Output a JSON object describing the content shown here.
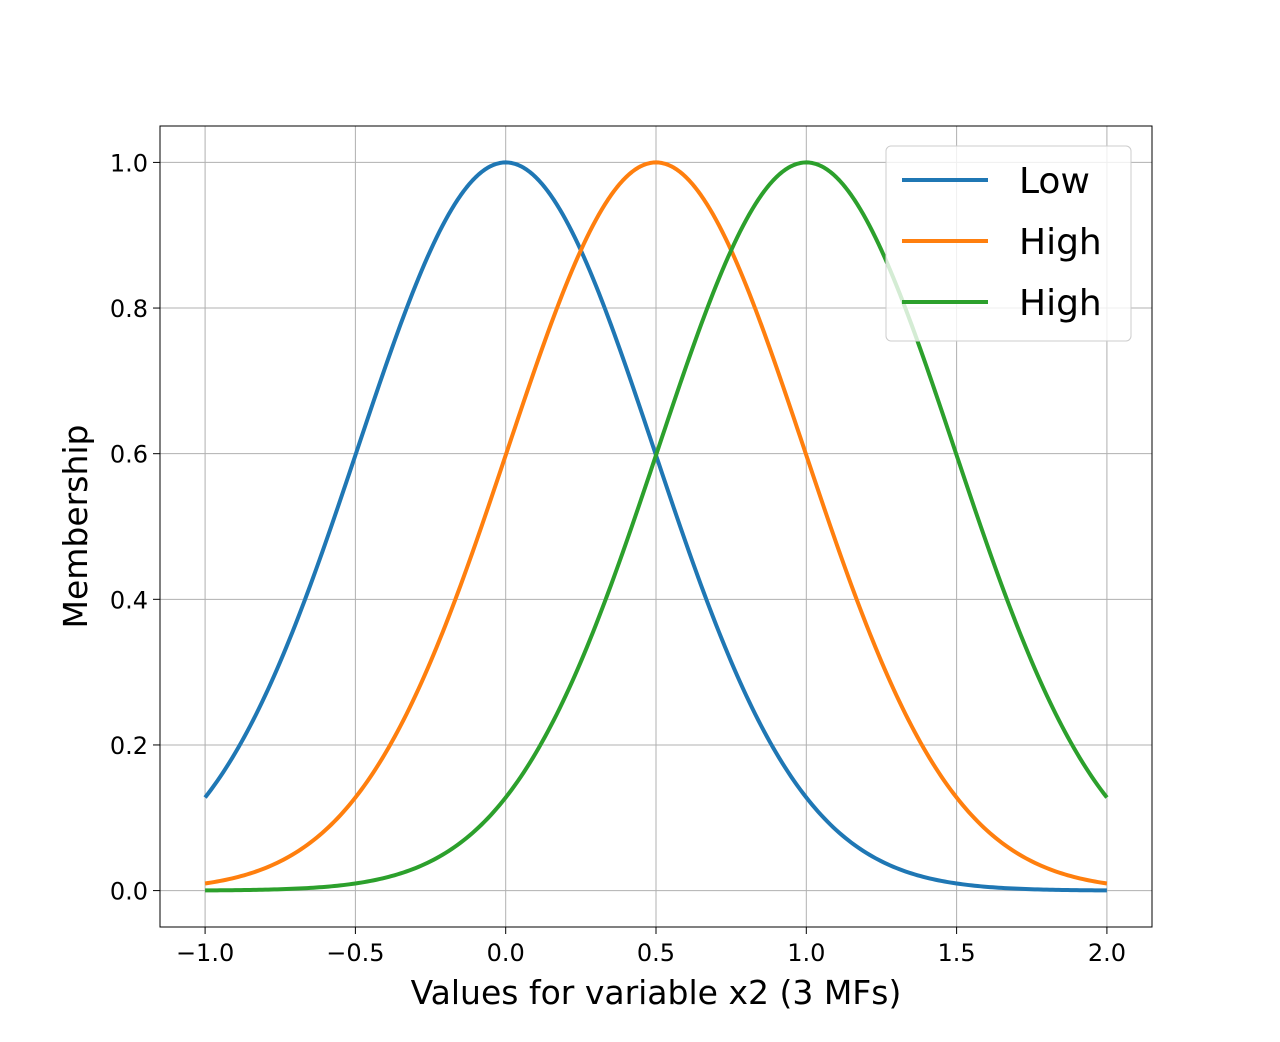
{
  "chart_data": {
    "type": "line",
    "title": "",
    "xlabel": "Values for variable x2 (3 MFs)",
    "ylabel": "Membership",
    "xlim": [
      -1.15,
      2.15
    ],
    "ylim": [
      -0.05,
      1.05
    ],
    "xticks": [
      -1.0,
      -0.5,
      0.0,
      0.5,
      1.0,
      1.5,
      2.0
    ],
    "xtick_labels": [
      "−1.0",
      "−0.5",
      "0.0",
      "0.5",
      "1.0",
      "1.5",
      "2.0"
    ],
    "yticks": [
      0.0,
      0.2,
      0.4,
      0.6,
      0.8,
      1.0
    ],
    "ytick_labels": [
      "0.0",
      "0.2",
      "0.4",
      "0.6",
      "0.8",
      "1.0"
    ],
    "grid": true,
    "legend_position": "top-right",
    "x_range": [
      -1.0,
      2.0
    ],
    "series": [
      {
        "name": "Low",
        "color": "#1f77b4",
        "function": "gaussian",
        "mean": 0.0,
        "sigma": 0.493
      },
      {
        "name": "High",
        "color": "#ff7f0e",
        "function": "gaussian",
        "mean": 0.5,
        "sigma": 0.493
      },
      {
        "name": "High",
        "color": "#2ca02c",
        "function": "gaussian",
        "mean": 1.0,
        "sigma": 0.493
      }
    ]
  }
}
